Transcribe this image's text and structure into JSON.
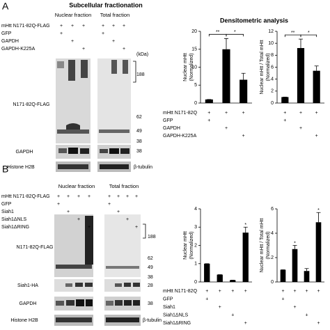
{
  "panel_a": {
    "label": "A",
    "title": "Subcellular fractionation",
    "fractions": [
      "Nuclear fraction",
      "Total fraction"
    ],
    "conditions": [
      {
        "label": "mHtt N171-82Q-FLAG",
        "marks": [
          "+",
          "+",
          "+",
          "+",
          "+",
          "+"
        ]
      },
      {
        "label": "GFP",
        "marks": [
          "+",
          null,
          null,
          "+",
          null,
          null
        ]
      },
      {
        "label": "GAPDH",
        "marks": [
          null,
          "+",
          null,
          null,
          "+",
          null
        ]
      },
      {
        "label": "GAPDH-K225A",
        "marks": [
          null,
          null,
          "+",
          null,
          null,
          "+"
        ]
      }
    ],
    "kda": "(kDa)",
    "markers": [
      "188",
      "62",
      "49",
      "38",
      "38"
    ],
    "blots": [
      "N171-82Q-FLAG",
      "GAPDH",
      "Histone H2B"
    ],
    "loading_control": "β-tubulin",
    "analysis_title": "Densitometric analysis",
    "table": [
      {
        "label": "mHtt N171-82Q",
        "marks": [
          "+",
          "+",
          "+",
          "+",
          "+",
          "+"
        ]
      },
      {
        "label": "GFP",
        "marks": [
          "+",
          null,
          null,
          "+",
          null,
          null
        ]
      },
      {
        "label": "GAPDH",
        "marks": [
          null,
          "+",
          null,
          null,
          "+",
          null
        ]
      },
      {
        "label": "GAPDH-K225A",
        "marks": [
          null,
          null,
          "+",
          null,
          null,
          "+"
        ]
      }
    ]
  },
  "panel_b": {
    "label": "B",
    "fractions": [
      "Nuclear fraction",
      "Total fraction"
    ],
    "conditions": [
      {
        "label": "mHtt N171-82Q-FLAG",
        "marks": [
          "+",
          "+",
          "+",
          "+",
          "+",
          "+",
          "+",
          "+"
        ]
      },
      {
        "label": "GFP",
        "marks": [
          "+",
          null,
          null,
          null,
          "+",
          null,
          null,
          null
        ]
      },
      {
        "label": "Siah1",
        "marks": [
          null,
          "+",
          null,
          null,
          null,
          "+",
          null,
          null
        ]
      },
      {
        "label": "Siah1ΔNLS",
        "marks": [
          null,
          null,
          "+",
          null,
          null,
          null,
          "+",
          null
        ]
      },
      {
        "label": "Siah1ΔRING",
        "marks": [
          null,
          null,
          null,
          "+",
          null,
          null,
          null,
          "+"
        ]
      }
    ],
    "markers": [
      "188",
      "62",
      "49",
      "38",
      "28",
      "38"
    ],
    "blots": [
      "N171-82Q-FLAG",
      "Siah1-HA",
      "GAPDH",
      "Histone H2B"
    ],
    "loading_control": "β-tubulin",
    "table": [
      {
        "label": "mHtt N171-82Q",
        "marks": [
          "+",
          "+",
          "+",
          "+",
          "+",
          "+",
          "+",
          "+"
        ]
      },
      {
        "label": "GFP",
        "marks": [
          "+",
          null,
          null,
          null,
          "+",
          null,
          null,
          null
        ]
      },
      {
        "label": "Siah1",
        "marks": [
          null,
          "+",
          null,
          null,
          null,
          "+",
          null,
          null
        ]
      },
      {
        "label": "Siah1ΔNLS",
        "marks": [
          null,
          null,
          "+",
          null,
          null,
          null,
          "+",
          null
        ]
      },
      {
        "label": "Siah1ΔRING",
        "marks": [
          null,
          null,
          null,
          "+",
          null,
          null,
          null,
          "+"
        ]
      }
    ]
  },
  "chart_data": [
    {
      "type": "bar",
      "ylabel": "Nuclear mHtt",
      "ylabel_note": "(Normalized)",
      "values": [
        1,
        15,
        6.5
      ],
      "errors": [
        0,
        3,
        1.8
      ],
      "color": "#000000",
      "ylim": [
        0,
        20
      ],
      "yticks": [
        0,
        5,
        10,
        15,
        20
      ],
      "annotations": [
        {
          "text": "**",
          "between": [
            0,
            1
          ]
        },
        {
          "text": "*",
          "between": [
            1,
            2
          ]
        }
      ]
    },
    {
      "type": "bar",
      "ylabel": "Nuclear mHtt / Total mHtt",
      "ylabel_note": "(Normalized)",
      "values": [
        1,
        9.2,
        5.4
      ],
      "errors": [
        0,
        1.5,
        0.8
      ],
      "color": "#000000",
      "ylim": [
        0,
        12
      ],
      "yticks": [
        0,
        2,
        4,
        6,
        8,
        10,
        12
      ],
      "annotations": [
        {
          "text": "**",
          "between": [
            0,
            1
          ]
        },
        {
          "text": "*",
          "between": [
            1,
            2
          ]
        }
      ]
    },
    {
      "type": "bar",
      "ylabel": "Nuclear mHtt",
      "ylabel_note": "(Normalized)",
      "values": [
        1,
        0.4,
        0.1,
        2.7
      ],
      "errors": [
        0,
        0,
        0,
        0.3
      ],
      "color": "#000000",
      "ylim": [
        0,
        4
      ],
      "yticks": [
        0,
        1,
        2,
        3,
        4
      ],
      "annotations": [
        {
          "text": "*",
          "at": 3
        }
      ]
    },
    {
      "type": "bar",
      "ylabel": "Nuclear mHtt / Total mHtt",
      "ylabel_note": "(Normalized)",
      "values": [
        1,
        2.7,
        0.9,
        4.9
      ],
      "errors": [
        0,
        0.3,
        0.2,
        0.8
      ],
      "color": "#000000",
      "ylim": [
        0,
        6
      ],
      "yticks": [
        0,
        2,
        4,
        6
      ],
      "annotations": [
        {
          "text": "*",
          "at": 1
        },
        {
          "text": "*",
          "at": 3
        }
      ]
    }
  ]
}
